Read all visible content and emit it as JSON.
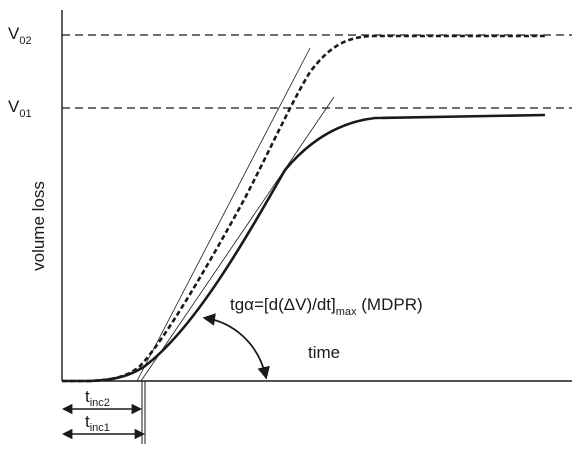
{
  "levels": {
    "v02": {
      "main": "V",
      "sub": "02"
    },
    "v01": {
      "main": "V",
      "sub": "01"
    }
  },
  "axes": {
    "y_label": "volume loss",
    "x_label": "time"
  },
  "annotation": {
    "prefix": "tgα=[d(ΔV)/dt]",
    "sub": "max",
    "suffix": " (MDPR)"
  },
  "incubation": {
    "t2": {
      "main": "t",
      "sub": "inc2"
    },
    "t1": {
      "main": "t",
      "sub": "inc1"
    }
  },
  "colors": {
    "ink": "#1a1a1a"
  }
}
